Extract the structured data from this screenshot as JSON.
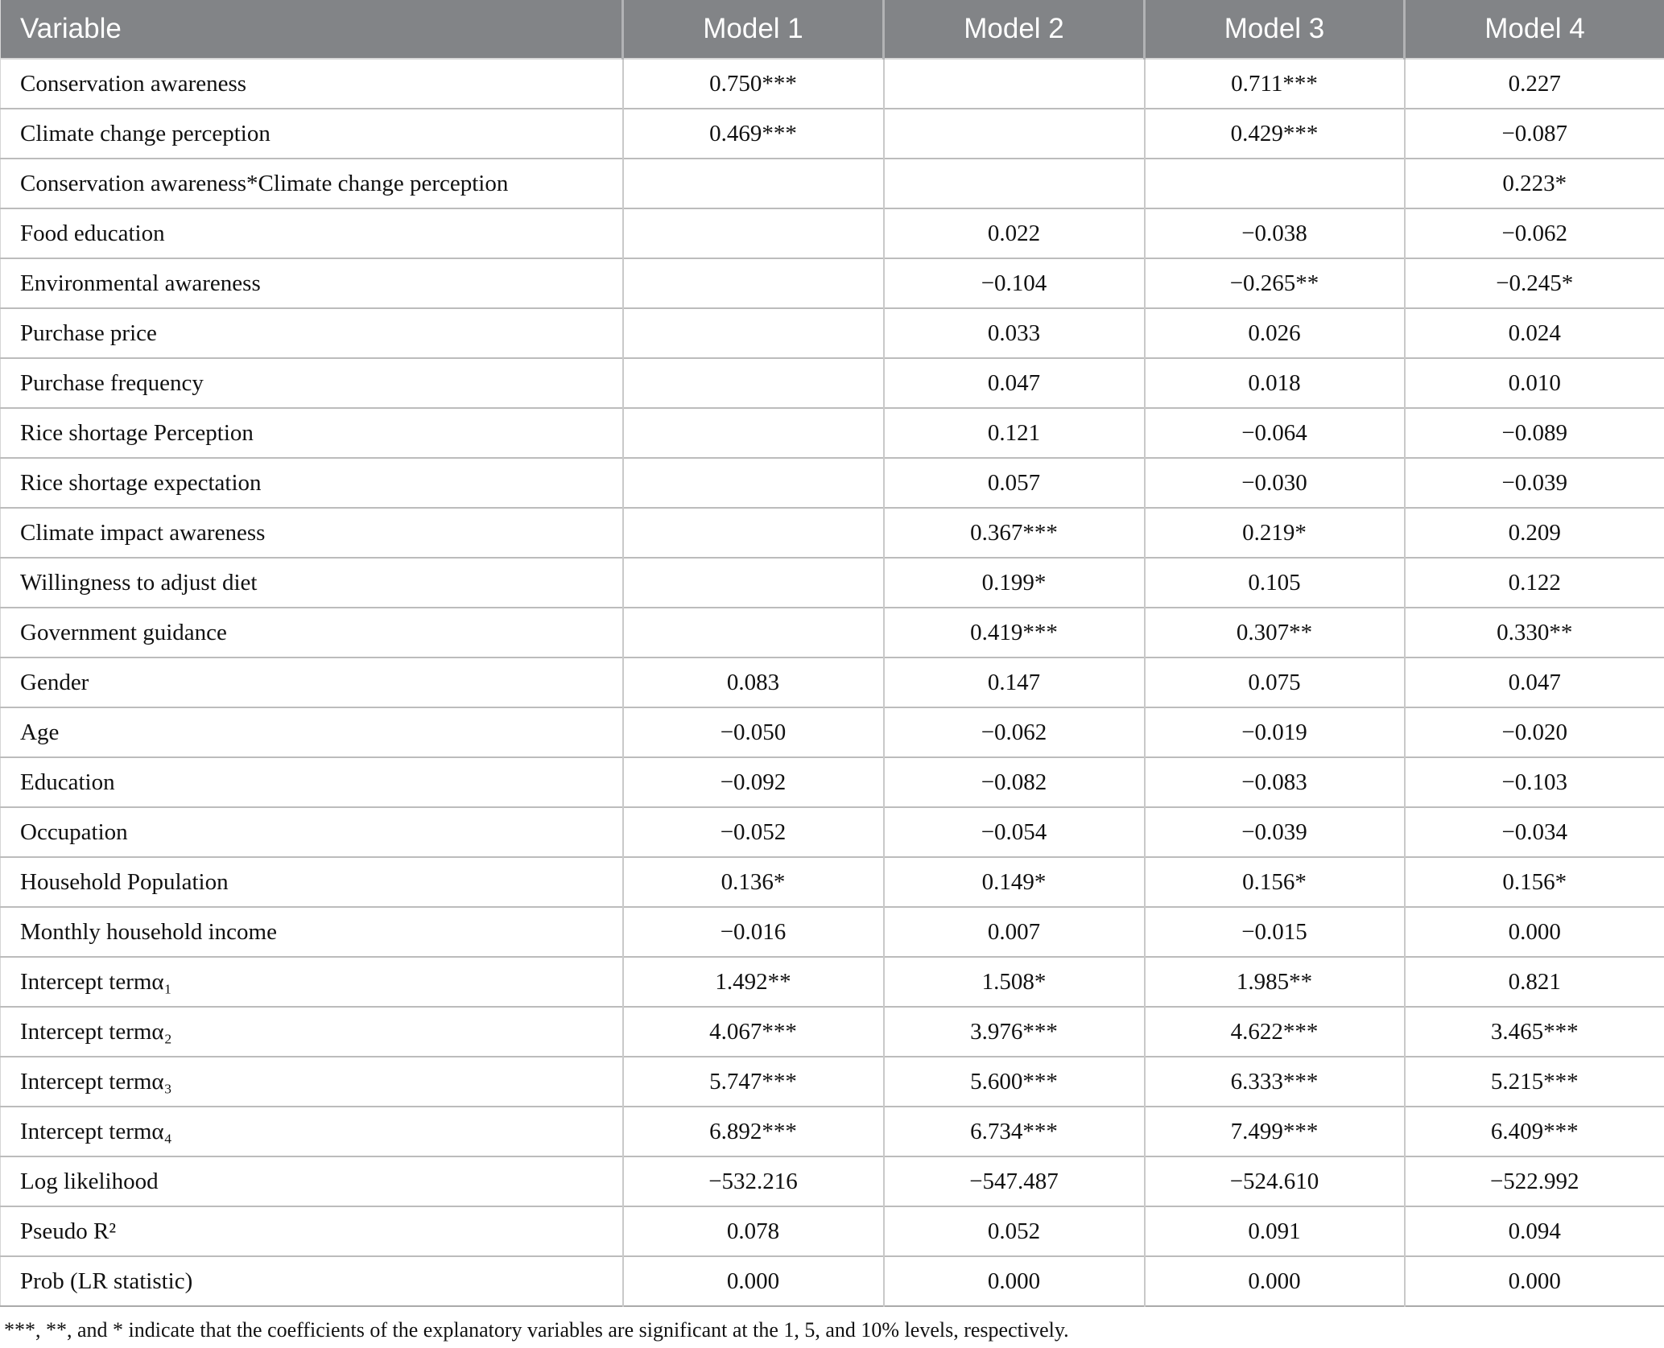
{
  "table": {
    "columns": [
      "Variable",
      "Model 1",
      "Model 2",
      "Model 3",
      "Model 4"
    ],
    "rows": [
      {
        "variable": "Conservation awareness",
        "values": [
          "0.750***",
          "",
          "0.711***",
          "0.227"
        ]
      },
      {
        "variable": "Climate change perception",
        "values": [
          "0.469***",
          "",
          "0.429***",
          "−0.087"
        ]
      },
      {
        "variable": "Conservation awareness*Climate change perception",
        "values": [
          "",
          "",
          "",
          "0.223*"
        ]
      },
      {
        "variable": "Food education",
        "values": [
          "",
          "0.022",
          "−0.038",
          "−0.062"
        ]
      },
      {
        "variable": "Environmental awareness",
        "values": [
          "",
          "−0.104",
          "−0.265**",
          "−0.245*"
        ]
      },
      {
        "variable": "Purchase price",
        "values": [
          "",
          "0.033",
          "0.026",
          "0.024"
        ]
      },
      {
        "variable": "Purchase frequency",
        "values": [
          "",
          "0.047",
          "0.018",
          "0.010"
        ]
      },
      {
        "variable": "Rice shortage Perception",
        "values": [
          "",
          "0.121",
          "−0.064",
          "−0.089"
        ]
      },
      {
        "variable": "Rice shortage expectation",
        "values": [
          "",
          "0.057",
          "−0.030",
          "−0.039"
        ]
      },
      {
        "variable": "Climate impact awareness",
        "values": [
          "",
          "0.367***",
          "0.219*",
          "0.209"
        ]
      },
      {
        "variable": "Willingness to adjust diet",
        "values": [
          "",
          "0.199*",
          "0.105",
          "0.122"
        ]
      },
      {
        "variable": "Government guidance",
        "values": [
          "",
          "0.419***",
          "0.307**",
          "0.330**"
        ]
      },
      {
        "variable": "Gender",
        "values": [
          "0.083",
          "0.147",
          "0.075",
          "0.047"
        ]
      },
      {
        "variable": "Age",
        "values": [
          "−0.050",
          "−0.062",
          "−0.019",
          "−0.020"
        ]
      },
      {
        "variable": "Education",
        "values": [
          "−0.092",
          "−0.082",
          "−0.083",
          "−0.103"
        ]
      },
      {
        "variable": "Occupation",
        "values": [
          "−0.052",
          "−0.054",
          "−0.039",
          "−0.034"
        ]
      },
      {
        "variable": "Household Population",
        "values": [
          "0.136*",
          "0.149*",
          "0.156*",
          "0.156*"
        ]
      },
      {
        "variable": "Monthly household income",
        "values": [
          "−0.016",
          "0.007",
          "−0.015",
          "0.000"
        ]
      },
      {
        "variable": "Intercept termα₁",
        "values": [
          "1.492**",
          "1.508*",
          "1.985**",
          "0.821"
        ]
      },
      {
        "variable": "Intercept termα₂",
        "values": [
          "4.067***",
          "3.976***",
          "4.622***",
          "3.465***"
        ]
      },
      {
        "variable": "Intercept termα₃",
        "values": [
          "5.747***",
          "5.600***",
          "6.333***",
          "5.215***"
        ]
      },
      {
        "variable": "Intercept termα₄",
        "values": [
          "6.892***",
          "6.734***",
          "7.499***",
          "6.409***"
        ]
      },
      {
        "variable": "Log likelihood",
        "values": [
          "−532.216",
          "−547.487",
          "−524.610",
          "−522.992"
        ]
      },
      {
        "variable": "Pseudo R²",
        "values": [
          "0.078",
          "0.052",
          "0.091",
          "0.094"
        ]
      },
      {
        "variable": "Prob (LR statistic)",
        "values": [
          "0.000",
          "0.000",
          "0.000",
          "0.000"
        ]
      }
    ],
    "footnote": "***, **, and * indicate that the coefficients of the explanatory variables are significant at the 1, 5, and 10% levels, respectively.",
    "colors": {
      "header_bg": "#828487",
      "header_text": "#ffffff",
      "header_divider": "#b2b3b5",
      "row_border": "#bcbcbc",
      "col_border": "#c9c9c9"
    }
  }
}
